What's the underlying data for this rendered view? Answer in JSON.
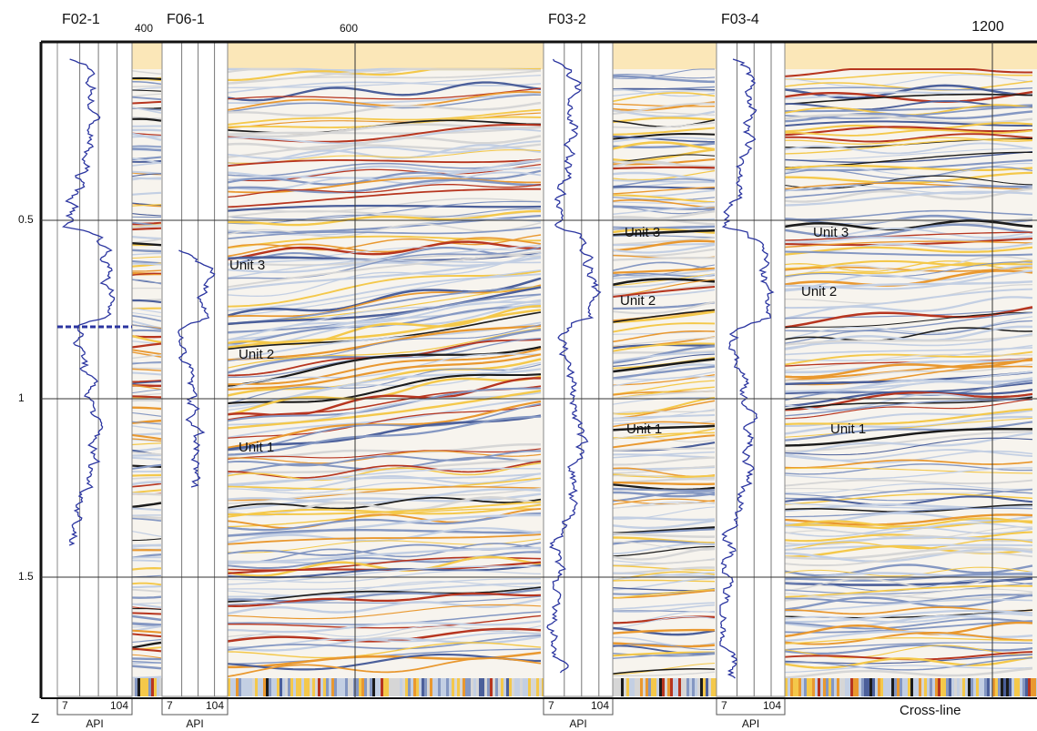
{
  "axes": {
    "z_label": "Z",
    "z_ticks": [
      "0.5",
      "1",
      "1.5"
    ],
    "crossline_label": "Cross-line",
    "crossline_ticks": [
      "400",
      "600",
      "1200"
    ]
  },
  "wells": [
    {
      "name": "F02-1",
      "scale_min": "7",
      "scale_max": "104",
      "scale_label": "API"
    },
    {
      "name": "F06-1",
      "scale_min": "7",
      "scale_max": "104",
      "scale_label": "API"
    },
    {
      "name": "F03-2",
      "scale_min": "7",
      "scale_max": "104",
      "scale_label": "API"
    },
    {
      "name": "F03-4",
      "scale_min": "7",
      "scale_max": "104",
      "scale_label": "API"
    }
  ],
  "unit_labels": [
    "Unit 3",
    "Unit 2",
    "Unit 1",
    "Unit 3",
    "Unit 2",
    "Unit 1",
    "Unit 3",
    "Unit 2",
    "Unit 1"
  ]
}
